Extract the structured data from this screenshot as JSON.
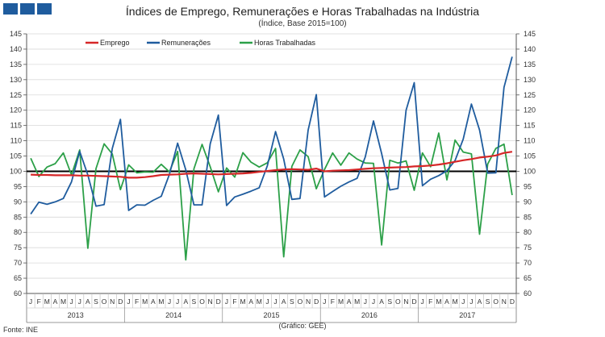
{
  "header": {
    "title": "Índices de Emprego,  Remunerações e Horas Trabalhadas na Indústria",
    "subtitle": "(Índice, Base 2015=100)"
  },
  "footer": {
    "source": "Fonte: INE",
    "credit": "(Gráfico: GEE)"
  },
  "chart_data": {
    "type": "line",
    "title": "Índices de Emprego,  Remunerações e Horas Trabalhadas na Indústria",
    "subtitle": "(Índice, Base 2015=100)",
    "ylim": [
      60,
      145
    ],
    "yticks": [
      60,
      65,
      70,
      75,
      80,
      85,
      90,
      95,
      100,
      105,
      110,
      115,
      120,
      125,
      130,
      135,
      140,
      145
    ],
    "month_labels": [
      "J",
      "F",
      "M",
      "A",
      "M",
      "J",
      "J",
      "A",
      "S",
      "O",
      "N",
      "D"
    ],
    "years": [
      "2013",
      "2014",
      "2015",
      "2016",
      "2017"
    ],
    "reference_line": 100,
    "legend_position": "top",
    "grid": true,
    "series": [
      {
        "name": "Emprego",
        "color": "#d62728",
        "values": [
          98.9,
          98.8,
          98.8,
          98.7,
          98.7,
          98.7,
          98.6,
          98.6,
          98.5,
          98.4,
          98.3,
          98.2,
          97.9,
          97.9,
          98.1,
          98.4,
          98.8,
          98.9,
          99.0,
          99.2,
          99.3,
          99.2,
          99.1,
          99.0,
          99.1,
          99.2,
          99.3,
          99.5,
          99.8,
          100.1,
          100.4,
          100.6,
          100.7,
          100.6,
          100.5,
          100.9,
          100.0,
          100.2,
          100.3,
          100.4,
          100.6,
          100.8,
          101.0,
          101.1,
          101.2,
          101.3,
          101.4,
          101.6,
          101.7,
          101.9,
          102.2,
          102.6,
          103.1,
          103.6,
          104.0,
          104.5,
          104.8,
          105.2,
          106.0,
          106.4
        ]
      },
      {
        "name": "Remunerações",
        "color": "#1f5c9e",
        "values": [
          86.0,
          89.9,
          89.2,
          90.0,
          91.1,
          96.5,
          106.5,
          98.8,
          88.6,
          89.1,
          107.5,
          117.0,
          87.2,
          89.0,
          88.9,
          90.5,
          91.8,
          99.0,
          109.2,
          100.5,
          89.0,
          89.0,
          109.0,
          118.4,
          88.8,
          91.6,
          92.5,
          93.5,
          94.6,
          101.8,
          113.0,
          104.0,
          90.8,
          91.1,
          113.5,
          125.1,
          91.6,
          93.4,
          95.1,
          96.5,
          97.7,
          104.7,
          116.5,
          105.8,
          93.9,
          94.4,
          120.0,
          129.0,
          95.3,
          97.4,
          98.6,
          100.2,
          103.5,
          110.5,
          122.0,
          113.5,
          99.4,
          99.5,
          127.5,
          137.5
        ]
      },
      {
        "name": "Horas Trabalhadas",
        "color": "#2ca048",
        "values": [
          104.3,
          98.3,
          101.4,
          102.5,
          106.0,
          98.8,
          107.0,
          74.8,
          100.9,
          109.0,
          105.7,
          94.0,
          102.1,
          99.5,
          99.8,
          99.7,
          102.3,
          99.8,
          106.5,
          71.0,
          100.8,
          108.8,
          101.5,
          93.3,
          101.1,
          98.1,
          106.1,
          103.0,
          101.4,
          102.8,
          107.5,
          72.0,
          101.6,
          107.0,
          104.8,
          94.3,
          100.6,
          106.0,
          102.0,
          106.0,
          104.0,
          102.7,
          102.6,
          75.9,
          103.6,
          102.7,
          103.4,
          93.8,
          106.0,
          101.5,
          112.5,
          97.2,
          110.2,
          106.3,
          105.7,
          79.4,
          102.4,
          107.5,
          108.9,
          92.2
        ]
      }
    ]
  }
}
